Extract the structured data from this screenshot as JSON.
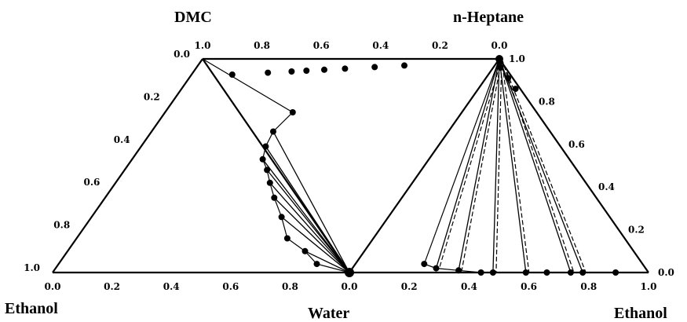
{
  "chart_data": {
    "type": "scatter",
    "description_type": "ternary-lle",
    "vertex_labels": {
      "left_top": "DMC",
      "right_top": "n-Heptane",
      "left_bottom": "Ethanol",
      "center_bottom": "Water",
      "right_bottom": "Ethanol"
    },
    "triangles": [
      {
        "name": "DMC–Water–Ethanol",
        "top_axis_ticks": [
          "1.0",
          "0.8",
          "0.6",
          "0.4",
          "0.2",
          "0.0"
        ],
        "left_axis_ticks": [
          "0.0",
          "0.2",
          "0.4",
          "0.6",
          "0.8",
          "1.0"
        ],
        "bottom_axis_ticks": [
          "0.0",
          "0.2",
          "0.4",
          "0.6",
          "0.8",
          "0.0"
        ],
        "binodal_points": [
          [
            0.87,
            0.04
          ],
          [
            0.8,
            0.1
          ],
          [
            0.71,
            0.16
          ],
          [
            0.64,
            0.26
          ],
          [
            0.57,
            0.35
          ],
          [
            0.52,
            0.42
          ],
          [
            0.48,
            0.48
          ],
          [
            0.44,
            0.53
          ],
          [
            0.42,
            0.59
          ],
          [
            0.41,
            0.66
          ],
          [
            0.43,
            0.75
          ]
        ],
        "tie_line_ends": [
          [
            0.41,
            0.66
          ],
          [
            0.42,
            0.59
          ],
          [
            0.44,
            0.53
          ],
          [
            0.48,
            0.48
          ],
          [
            0.52,
            0.42
          ],
          [
            0.57,
            0.35
          ],
          [
            0.64,
            0.26
          ],
          [
            0.8,
            0.1
          ]
        ]
      },
      {
        "name": "n-Heptane–Water–Ethanol",
        "top_axis_ticks": [
          "0.0"
        ],
        "right_axis_ticks": [
          "1.0",
          "0.8",
          "0.6",
          "0.4",
          "0.2",
          "0.0"
        ],
        "bottom_axis_ticks": [
          "0.0",
          "0.2",
          "0.4",
          "0.6",
          "0.8",
          "1.0"
        ],
        "binodal_points": [
          [
            0.11,
            0.0
          ],
          [
            0.22,
            0.0
          ],
          [
            0.26,
            0.0
          ],
          [
            0.34,
            0.0
          ],
          [
            0.41,
            0.0
          ],
          [
            0.52,
            0.0
          ],
          [
            0.56,
            0.0
          ],
          [
            0.63,
            0.01
          ],
          [
            0.7,
            0.02
          ],
          [
            0.73,
            0.04
          ]
        ],
        "tie_line_ends": [
          [
            0.22,
            0.0
          ],
          [
            0.26,
            0.0
          ],
          [
            0.41,
            0.0
          ],
          [
            0.52,
            0.0
          ],
          [
            0.63,
            0.01
          ],
          [
            0.7,
            0.02
          ]
        ]
      }
    ]
  }
}
